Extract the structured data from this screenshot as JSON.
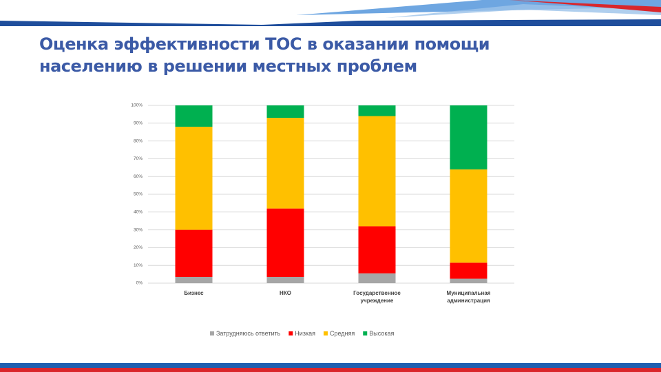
{
  "chart_data": {
    "type": "stacked_bar",
    "title": "Оценка эффективности ТОС в оказании помощи населению в решении местных проблем",
    "categories": [
      "Бизнес",
      "НКО",
      "Государственное учреждение",
      "Муниципальная администрация"
    ],
    "series": [
      {
        "name": "Затрудняюсь ответить",
        "color": "#a6a6a6",
        "values": [
          3.5,
          3.5,
          5.5,
          2.5
        ]
      },
      {
        "name": "Низкая",
        "color": "#ff0000",
        "values": [
          26.5,
          38.5,
          26.5,
          9
        ]
      },
      {
        "name": "Средняя",
        "color": "#ffc000",
        "values": [
          58,
          51,
          62,
          52.5
        ]
      },
      {
        "name": "Высокая",
        "color": "#00b050",
        "values": [
          12,
          7,
          6,
          36
        ]
      }
    ],
    "ylim": [
      0,
      100
    ],
    "yticks": [
      {
        "value": 0,
        "label": "0%"
      },
      {
        "value": 10,
        "label": "10%"
      },
      {
        "value": 20,
        "label": "20%"
      },
      {
        "value": 30,
        "label": "30%"
      },
      {
        "value": 40,
        "label": "40%"
      },
      {
        "value": 50,
        "label": "50%"
      },
      {
        "value": 60,
        "label": "60%"
      },
      {
        "value": 70,
        "label": "70%"
      },
      {
        "value": 80,
        "label": "80%"
      },
      {
        "value": 90,
        "label": "90%"
      },
      {
        "value": 100,
        "label": "100%"
      }
    ],
    "grid": true,
    "legend": "bottom"
  }
}
